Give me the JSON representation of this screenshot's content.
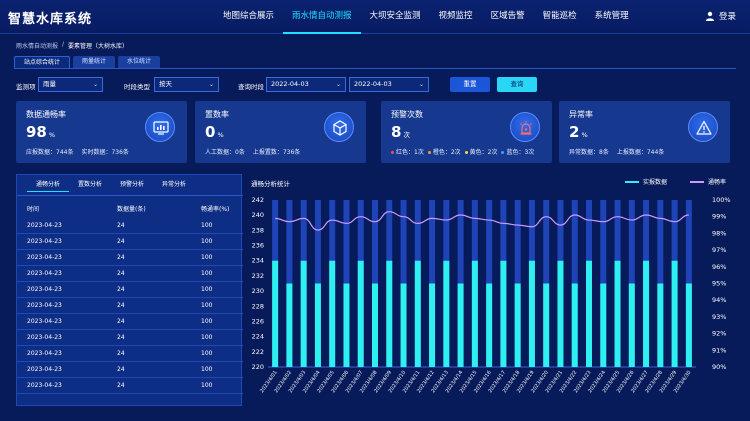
{
  "app_title": "智慧水库系统",
  "nav": [
    {
      "label": "地图综合展示",
      "active": false
    },
    {
      "label": "雨水情自动测报",
      "active": true
    },
    {
      "label": "大坝安全监测",
      "active": false
    },
    {
      "label": "视频监控",
      "active": false
    },
    {
      "label": "区域告警",
      "active": false
    },
    {
      "label": "智能巡检",
      "active": false
    },
    {
      "label": "系统管理",
      "active": false
    }
  ],
  "login_label": "登录",
  "breadcrumb": {
    "parent": "雨水情自动测报",
    "sep": "/",
    "current": "要素管理（大树水库）"
  },
  "tabs": [
    {
      "label": "站点综合统计",
      "active": true
    },
    {
      "label": "雨量统计",
      "active": false
    },
    {
      "label": "水位统计",
      "active": false
    }
  ],
  "filters": {
    "station_label": "监测项",
    "station_value": "雨量",
    "period_label": "时段类型",
    "period_value": "按天",
    "time_label": "查询时段",
    "start_date": "2022-04-03",
    "end_date": "2022-04-03",
    "reset_label": "重置",
    "query_label": "查询"
  },
  "cards": [
    {
      "title": "数据通畅率",
      "value": "98",
      "unit": "%",
      "sub": [
        {
          "text": "应报数据：744条"
        },
        {
          "text": "实时数据：736条"
        }
      ],
      "icon": "chart-monitor-icon"
    },
    {
      "title": "置数率",
      "value": "0",
      "unit": "%",
      "sub": [
        {
          "text": "人工数据：0条"
        },
        {
          "text": "上报置数：736条"
        }
      ],
      "icon": "cube-icon"
    },
    {
      "title": "预警次数",
      "value": "8",
      "unit": "次",
      "sub": [
        {
          "text": "红色：1次",
          "color": "#ff4d4d"
        },
        {
          "text": "橙色：2次",
          "color": "#ff9a2e"
        },
        {
          "text": "黄色：2次",
          "color": "#ffd93d"
        },
        {
          "text": "蓝色：3次",
          "color": "#3aa0ff"
        }
      ],
      "icon": "alarm-light-icon"
    },
    {
      "title": "异常率",
      "value": "2",
      "unit": "%",
      "sub": [
        {
          "text": "异常数据：8条"
        },
        {
          "text": "上报数据：744条"
        }
      ],
      "icon": "warning-icon"
    }
  ],
  "table": {
    "tabs": [
      {
        "label": "通畅分析",
        "active": true
      },
      {
        "label": "置数分析",
        "active": false
      },
      {
        "label": "预警分析",
        "active": false
      },
      {
        "label": "异常分析",
        "active": false
      }
    ],
    "columns": [
      "时间",
      "数据量(条)",
      "畅通率(%)"
    ],
    "rows": [
      [
        "2023-04-23",
        "24",
        "100"
      ],
      [
        "2023-04-23",
        "24",
        "100"
      ],
      [
        "2023-04-23",
        "24",
        "100"
      ],
      [
        "2023-04-23",
        "24",
        "100"
      ],
      [
        "2023-04-23",
        "24",
        "100"
      ],
      [
        "2023-04-23",
        "24",
        "100"
      ],
      [
        "2023-04-23",
        "24",
        "100"
      ],
      [
        "2023-04-23",
        "24",
        "100"
      ],
      [
        "2023-04-23",
        "24",
        "100"
      ],
      [
        "2023-04-23",
        "24",
        "100"
      ],
      [
        "2023-04-23",
        "24",
        "100"
      ]
    ]
  },
  "colors": {
    "bar": "#2ef0f0",
    "bar_bg": "#1e44b8",
    "line": "#c89cff",
    "accent": "#22e0ff"
  },
  "chart_data": {
    "type": "bar",
    "title": "通畅分析统计",
    "categories": [
      "2023/4/01",
      "2023/4/02",
      "2023/4/03",
      "2023/4/04",
      "2023/4/05",
      "2023/4/06",
      "2023/4/07",
      "2023/4/08",
      "2023/4/09",
      "2023/4/10",
      "2023/4/11",
      "2023/4/12",
      "2023/4/13",
      "2023/4/14",
      "2023/4/15",
      "2023/4/16",
      "2023/4/17",
      "2023/4/18",
      "2023/4/19",
      "2023/4/20",
      "2023/4/21",
      "2023/4/22",
      "2023/4/23",
      "2023/4/24",
      "2023/4/25",
      "2023/4/26",
      "2023/4/27",
      "2023/4/28",
      "2023/4/29",
      "2023/4/30"
    ],
    "series": [
      {
        "name": "实报数据",
        "type": "bar",
        "axis": "left",
        "values": [
          234,
          231,
          234,
          231,
          234,
          231,
          234,
          231,
          234,
          231,
          234,
          231,
          234,
          231,
          234,
          231,
          234,
          231,
          234,
          231,
          234,
          231,
          234,
          231,
          234,
          231,
          234,
          231,
          234,
          231
        ]
      },
      {
        "name": "通畅率",
        "type": "line",
        "axis": "right",
        "values": [
          98.9,
          98.7,
          98.9,
          98.2,
          98.8,
          98.6,
          99.0,
          98.7,
          99.3,
          99.0,
          98.6,
          98.9,
          98.8,
          99.1,
          98.9,
          98.8,
          98.6,
          98.5,
          98.4,
          99.0,
          98.5,
          99.1,
          98.8,
          98.7,
          99.0,
          98.8,
          99.1,
          98.9,
          98.7,
          99.1
        ]
      }
    ],
    "ylim_left": [
      220,
      242
    ],
    "yticks_left": [
      220,
      222,
      224,
      226,
      228,
      230,
      232,
      234,
      236,
      238,
      240,
      242
    ],
    "ylim_right": [
      90,
      100
    ],
    "yticks_right": [
      "90%",
      "91%",
      "92%",
      "93%",
      "94%",
      "95%",
      "96%",
      "97%",
      "98%",
      "99%",
      "100%"
    ],
    "legend_position": "top-right",
    "grid": false
  }
}
